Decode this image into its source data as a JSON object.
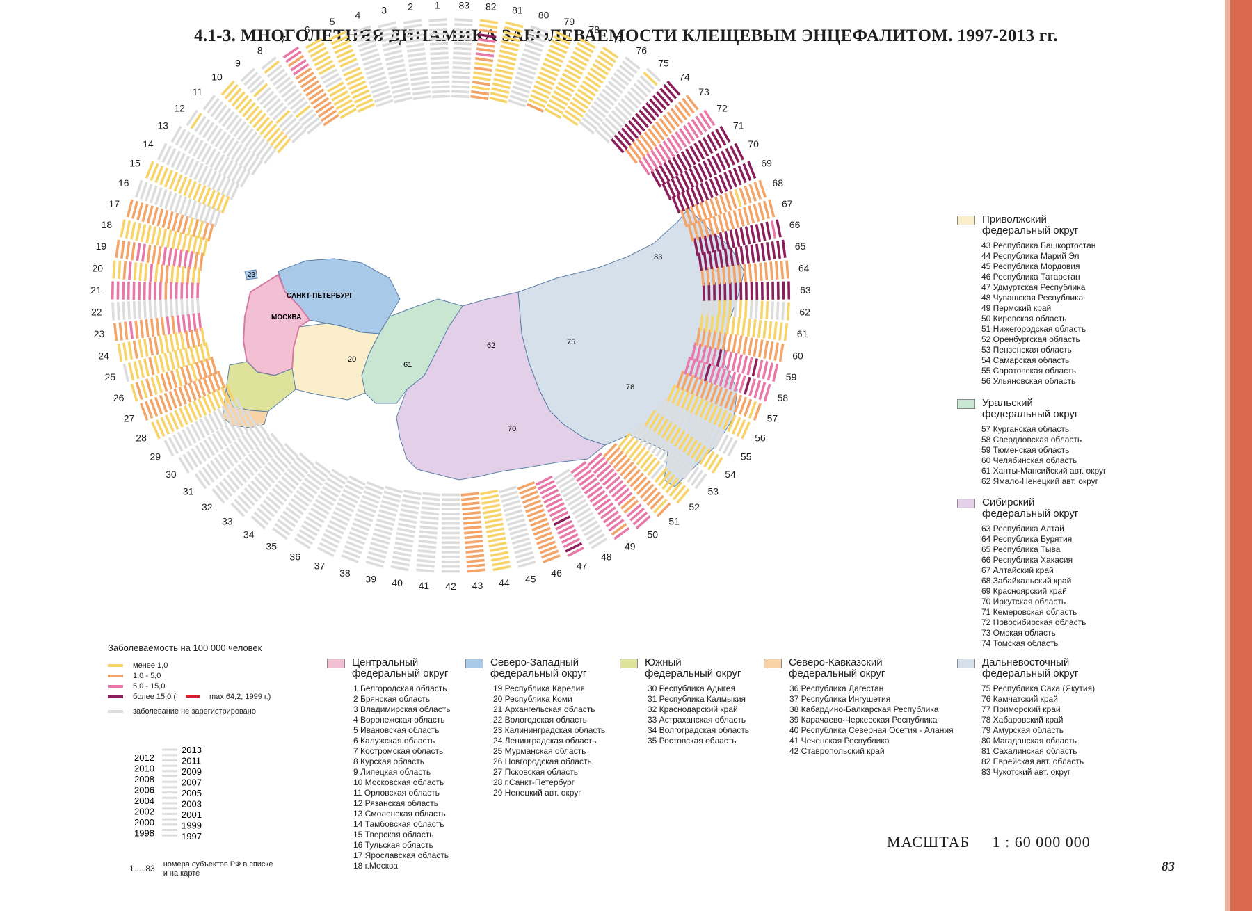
{
  "title": "4.1-3. МНОГОЛЕТНЯЯ ДИНАМИКА ЗАБОЛЕВАЕМОСТИ КЛЕЩЕВЫМ ЭНЦЕФАЛИТОМ. 1997-2013 гг.",
  "scale": {
    "label": "МАСШТАБ",
    "value": "1 : 60 000 000"
  },
  "page_number": "83",
  "colors": {
    "accent_band": "#d9694d",
    "lt1": "#f7d46a",
    "r1_5": "#f3a468",
    "r5_15": "#e778a8",
    "gt15": "#8b1f5c",
    "max": "#d81e2c",
    "none": "#dcdcdc"
  },
  "incidence_legend": {
    "title": "Заболеваемость на 100 000 человек",
    "items": [
      {
        "key": "lt1",
        "label": "менее 1,0"
      },
      {
        "key": "r1_5",
        "label": "1,0 - 5,0"
      },
      {
        "key": "r5_15",
        "label": "5,0 - 15,0"
      },
      {
        "key": "gt15",
        "label": "более 15,0 (",
        "extra": "max 64,2; 1999 г.)"
      },
      {
        "key": "none",
        "label": "заболевание не зарегистрировано"
      }
    ]
  },
  "years_key": {
    "left": [
      "2012",
      "2010",
      "2008",
      "2006",
      "2004",
      "2002",
      "2000",
      "1998"
    ],
    "right": [
      "2013",
      "2011",
      "2009",
      "2007",
      "2005",
      "2003",
      "2001",
      "1999",
      "1997"
    ]
  },
  "number_key": {
    "range": "1.....83",
    "desc_1": "номера субъектов РФ в списке",
    "desc_2": "и на карте"
  },
  "map_labels": {
    "moscow": "МОСКВА",
    "spb": "САНКТ-ПЕТЕРБУРГ"
  },
  "districts": [
    {
      "name_1": "Центральный",
      "name_2": "федеральный округ",
      "color": "#f3bfd3",
      "items": [
        "1 Белгородская область",
        "2 Брянская область",
        "3 Владимирская область",
        "4 Воронежская область",
        "5 Ивановская область",
        "6 Калужская область",
        "7 Костромская область",
        "8 Курская область",
        "9 Липецкая область",
        "10 Московская область",
        "11 Орловская область",
        "12 Рязанская область",
        "13 Смоленская область",
        "14 Тамбовская область",
        "15 Тверская область",
        "16 Тульская область",
        "17 Ярославская область",
        "18 г.Москва"
      ]
    },
    {
      "name_1": "Северо-Западный",
      "name_2": "федеральный округ",
      "color": "#a9c9e9",
      "items": [
        "19 Республика Карелия",
        "20 Республика Коми",
        "21 Архангельская область",
        "22 Вологодская область",
        "23 Калининградская область",
        "24 Ленинградская область",
        "25 Мурманская область",
        "26 Новгородская область",
        "27 Псковская область",
        "28 г.Санкт-Петербург",
        "29 Ненецкий авт. округ"
      ]
    },
    {
      "name_1": "Южный",
      "name_2": "федеральный округ",
      "color": "#dfe29a",
      "items": [
        "30 Республика Адыгея",
        "31 Республика Калмыкия",
        "32 Краснодарский край",
        "33 Астраханская область",
        "34 Волгоградская область",
        "35 Ростовская область"
      ]
    },
    {
      "name_1": "Северо-Кавказский",
      "name_2": "федеральный округ",
      "color": "#f7d3a5",
      "items": [
        "36 Республика Дагестан",
        "37 Республика Ингушетия",
        "38 Кабардино-Балкарская Республика",
        "39 Карачаево-Черкесская Республика",
        "40 Республика Северная Осетия - Алания",
        "41 Чеченская Республика",
        "42 Ставропольский край"
      ]
    },
    {
      "name_1": "Дальневосточный",
      "name_2": "федеральный округ",
      "color": "#d5e0ea",
      "items": [
        "75 Республика Саха (Якутия)",
        "76 Камчатский край",
        "77 Приморский край",
        "78 Хабаровский край",
        "79 Амурская область",
        "80 Магаданская область",
        "81 Сахалинская область",
        "82 Еврейская авт. область",
        "83 Чукотский авт. округ"
      ]
    },
    {
      "name_1": "Приволжский",
      "name_2": "федеральный округ",
      "color": "#fbeecb",
      "items": [
        "43 Республика Башкортостан",
        "44 Республика Марий Эл",
        "45 Республика Мордовия",
        "46 Республика Татарстан",
        "47 Удмуртская Республика",
        "48 Чувашская Республика",
        "49 Пермский край",
        "50 Кировская область",
        "51 Нижегородская область",
        "52 Оренбургская область",
        "53 Пензенская область",
        "54 Самарская область",
        "55 Саратовская область",
        "56 Ульяновская область"
      ]
    },
    {
      "name_1": "Уральский",
      "name_2": "федеральный округ",
      "color": "#c9e6d2",
      "items": [
        "57 Курганская область",
        "58 Свердловская область",
        "59 Тюменская область",
        "60 Челябинская область",
        "61 Ханты-Мансийский авт. округ",
        "62 Ямало-Ненецкий авт. округ"
      ]
    },
    {
      "name_1": "Сибирский",
      "name_2": "федеральный округ",
      "color": "#e3cfe8",
      "items": [
        "63 Республика Алтай",
        "64 Республика Бурятия",
        "65 Республика Тыва",
        "66 Республика Хакасия",
        "67 Алтайский край",
        "68 Забайкальский край",
        "69 Красноярский край",
        "70 Иркутская область",
        "71 Кемеровская область",
        "72 Новосибирская область",
        "73 Омская область",
        "74 Томская область"
      ]
    }
  ],
  "region_profiles": {
    "1": "nnnnnnnnnnnnnnnnn",
    "2": "nnnnnnnnnnnnnnnnn",
    "3": "nnnnnnnnnnnnnnnnn",
    "4": "nnnnnnnnnnnnnnnnn",
    "5": "yyyyyyyyynyyyyyyy",
    "6": "yyyyyyynnnyyyyyyy",
    "7": "ooooooooooooppopp",
    "8": "nnnnynnnnnnnnnnyn",
    "9": "nnnnnynnnnnnynnnn",
    "10": "yyyyyyyyyyyyyyyyy",
    "11": "nnnnnnnnnnnnnnnnn",
    "12": "nnnnnnnnnnnnnnnyn",
    "13": "nnnnnnnnnnnnnnnnn",
    "14": "nnnnnnnnnnnnnnnnn",
    "15": "yyyyyyyyyyyyyyyyy",
    "16": "nnnnnnnnnnnnnnnnn",
    "17": "ooyoyoooooooooooo",
    "18": "yyyyyyyyyyyyyyyyy",
    "19": "ooppppppoooppoooo",
    "20": "yyoyyyooypyyypoyy",
    "21": "ppppppopppppppppp",
    "22": "nnnnnnnnnnnnnnnnn",
    "23": "pppppopoooooopooo",
    "24": "yoooyyyyyooyyoyyy",
    "25": "yyyyyyyyyyyoyyyyn",
    "26": "ooooyooyoooyyoyoy",
    "27": "ooooooooooooooooo",
    "28": "yyyyyyyyyyyyyyyyy",
    "29": "nnnnnnnnnnnnnnnnn",
    "30": "nnnnnnnnnnnnnnnnn",
    "31": "nnnnnnnnnnnnnnnnn",
    "32": "nnnnnnnnnnnnnnnnn",
    "33": "nnnnnnnnnnnnnnnnn",
    "34": "nnnnnnnnnnnnnnnnn",
    "35": "nnnnnnnnnnnnnnnnn",
    "36": "nnnnnnnnnnnnnnnnn",
    "37": "nnnnnnnnnnnnnnnnn",
    "38": "nnnnnnnnnnnnnnnnn",
    "39": "nnnnnnnnnnnnnnnnn",
    "40": "nnnnnnnnnnnnnnnnn",
    "41": "nnnnnnnnnnnnnnnnn",
    "42": "nnnnnnnnnnnnnnnnn",
    "43": "ooooooooooooooooo",
    "44": "yyyyyyyyyyyyyyyyy",
    "45": "nnnnnnnnnnnnnnnnn",
    "46": "ooooooooooooooooo",
    "47": "pppppppppgpppppgp",
    "48": "nnnnnnnnnnnnnnnnn",
    "49": "pppppppppppppppop",
    "50": "pppppppppppoopppp",
    "51": "oooooooooooooooyo",
    "52": "yyyyyyyyynyyyyyyy",
    "53": "nnnnnnnnnnnnnnnnn",
    "54": "yyyyyyyyyyyyyyyyy",
    "55": "nnnnnnnnnnnnnnnnn",
    "56": "yyyyyyyyyyyyyyyyy",
    "57": "oooooooooooooooyo",
    "58": "ppppgpppppppgpppp",
    "59": "pppppgppppppgpppp",
    "60": "ooooooooooooooooo",
    "61": "yyyyyyyyyyyyyyyyy",
    "62": "nnnyyynyynnyynnny",
    "63": "ggggggggggggggggg",
    "64": "ooooooooooooooooo",
    "65": "ggggggggggggggggg",
    "66": "gggggggggggggggpg",
    "67": "ooooooooooooooooo",
    "68": "oooooooooooyooooo",
    "69": "ggggggggggggggggg",
    "70": "ggggggggggggggggg",
    "71": "ggggggggggggggggg",
    "72": "ppppppppppppppppp",
    "73": "ooooooooooooooooo",
    "74": "ggggggggggggggggg",
    "75": "nnnnnnnnnnnnnnnyn",
    "76": "nnnnnnnnnnnnnnnnn",
    "77": "yyyyyyyyyyyyyyyyy",
    "78": "yyyyyyyyyyyyyyyyy",
    "79": "oyyyyyyyyyyyyyyyy",
    "80": "nnnnnnnnnnnnnnnnn",
    "81": "yyyyyyyyyyyyyyyyy",
    "82": "ooyoyyoyopoopgoyy",
    "83": "nnnnnnnnnnnnnnnnn"
  },
  "region_numbers": [
    "1",
    "2",
    "3",
    "4",
    "5",
    "6",
    "7",
    "8",
    "9",
    "10",
    "11",
    "12",
    "13",
    "14",
    "15",
    "16",
    "17",
    "18",
    "19",
    "20",
    "21",
    "22",
    "23",
    "24",
    "25",
    "26",
    "27",
    "28",
    "29",
    "30",
    "31",
    "32",
    "33",
    "34",
    "35",
    "36",
    "37",
    "38",
    "39",
    "40",
    "41",
    "42",
    "43",
    "44",
    "45",
    "46",
    "47",
    "48",
    "49",
    "50",
    "51",
    "52",
    "53",
    "54",
    "55",
    "56",
    "57",
    "58",
    "59",
    "60",
    "61",
    "62",
    "63",
    "64",
    "65",
    "66",
    "67",
    "68",
    "69",
    "70",
    "71",
    "72",
    "73",
    "74",
    "75",
    "76",
    "77",
    "78",
    "79",
    "80",
    "81",
    "82",
    "83"
  ]
}
